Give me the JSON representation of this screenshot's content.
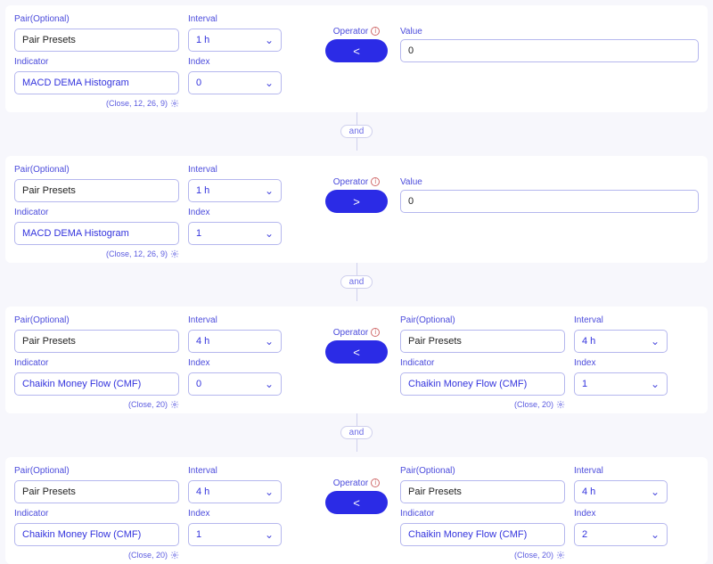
{
  "labels": {
    "pair": "Pair(Optional)",
    "interval": "Interval",
    "indicator": "Indicator",
    "index": "Index",
    "operator": "Operator",
    "value": "Value"
  },
  "connector": "and",
  "blocks": [
    {
      "type": "value",
      "left": {
        "pair": "Pair Presets",
        "interval": "1 h",
        "indicator": "MACD DEMA Histogram",
        "index": "0",
        "hint": "(Close, 12, 26, 9)"
      },
      "operator": "<",
      "value": "0"
    },
    {
      "type": "value",
      "left": {
        "pair": "Pair Presets",
        "interval": "1 h",
        "indicator": "MACD DEMA Histogram",
        "index": "1",
        "hint": "(Close, 12, 26, 9)"
      },
      "operator": ">",
      "value": "0"
    },
    {
      "type": "compare",
      "left": {
        "pair": "Pair Presets",
        "interval": "4 h",
        "indicator": "Chaikin Money Flow (CMF)",
        "index": "0",
        "hint": "(Close, 20)"
      },
      "operator": "<",
      "right": {
        "pair": "Pair Presets",
        "interval": "4 h",
        "indicator": "Chaikin Money Flow (CMF)",
        "index": "1",
        "hint": "(Close, 20)"
      }
    },
    {
      "type": "compare",
      "left": {
        "pair": "Pair Presets",
        "interval": "4 h",
        "indicator": "Chaikin Money Flow (CMF)",
        "index": "1",
        "hint": "(Close, 20)"
      },
      "operator": "<",
      "right": {
        "pair": "Pair Presets",
        "interval": "4 h",
        "indicator": "Chaikin Money Flow (CMF)",
        "index": "2",
        "hint": "(Close, 20)"
      }
    }
  ],
  "colors": {
    "accent": "#2b2be6",
    "border": "#b5b7ee",
    "page_bg": "#f7f7fc",
    "panel_bg": "#ffffff",
    "text": "#3333dd"
  }
}
